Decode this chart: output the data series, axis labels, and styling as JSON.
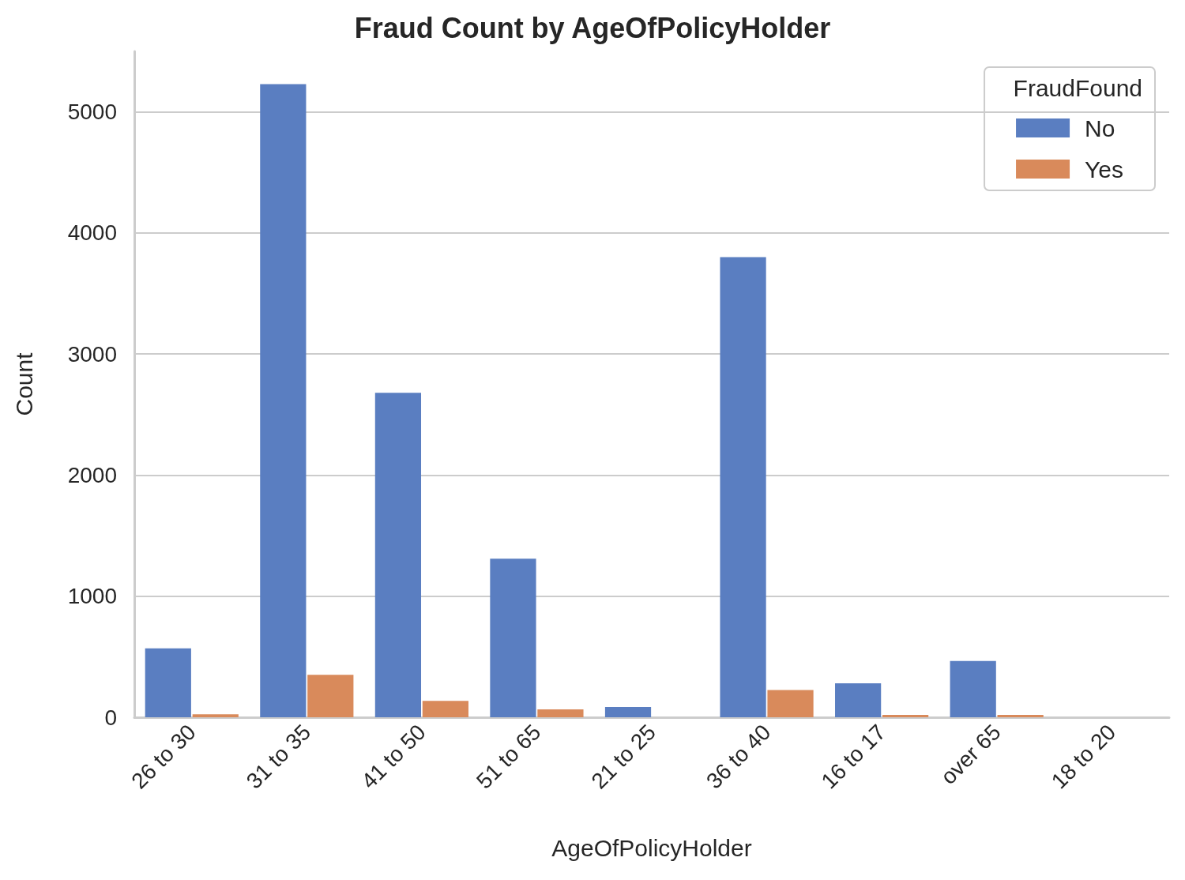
{
  "chart_data": {
    "type": "bar",
    "title": "Fraud Count by AgeOfPolicyHolder",
    "xlabel": "AgeOfPolicyHolder",
    "ylabel": "Count",
    "legend_title": "FraudFound",
    "categories": [
      "26 to 30",
      "31 to 35",
      "41 to 50",
      "51 to 65",
      "21 to 25",
      "36 to 40",
      "16 to 17",
      "over 65",
      "18 to 20"
    ],
    "series": [
      {
        "name": "No",
        "color": "#5a7ec1",
        "values": [
          570,
          5230,
          2680,
          1310,
          85,
          3800,
          280,
          465,
          0
        ]
      },
      {
        "name": "Yes",
        "color": "#d98a5b",
        "values": [
          25,
          350,
          135,
          65,
          0,
          225,
          20,
          20,
          0
        ]
      }
    ],
    "ylim": [
      0,
      5500
    ],
    "yticks": [
      0,
      1000,
      2000,
      3000,
      4000,
      5000
    ],
    "grid": "y",
    "legend": "top right"
  }
}
